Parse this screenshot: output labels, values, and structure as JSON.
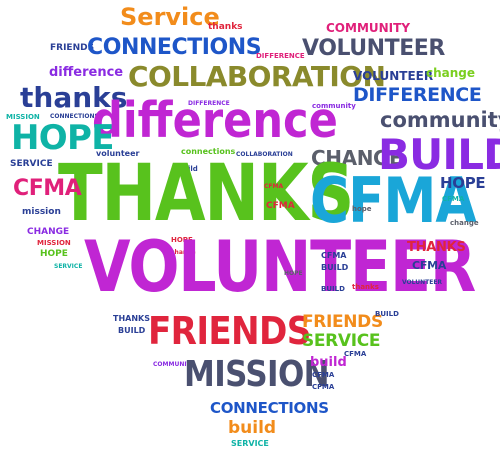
{
  "words": {
    "service_top": "Service",
    "thanks_top": "thanks",
    "community_top": "COMMUNITY",
    "friends_left_top": "FRIENDS",
    "connections_top": "CONNECTIONS",
    "difference_small_top": "DIFFERENCE",
    "volunteer_right_top": "VOLUNTEER",
    "difference_left_script": "difference",
    "collaboration": "COLLABORATION",
    "volunteer_right_mid": "VOLUNTEER",
    "change_right_top": "change",
    "thanks_left": "thanks",
    "difference_right": "DIFFERENCE",
    "difference_tiny": "DIFFERENCE",
    "community_tiny": "community",
    "mission_left_tiny": "MISSION",
    "connections_left_tiny": "CONNECTIONS",
    "difference_big": "difference",
    "community_right": "community",
    "hope_left": "HOPE",
    "volunteer_tiny": "volunteer",
    "connections_tiny": "connections",
    "collaboration_tiny": "COLLABORATION",
    "change_mid": "CHANGE",
    "build_right": "BUILD",
    "service_left": "SERVICE",
    "build_tiny1": "build",
    "thanks_big": "THANKS",
    "cfma_big": "CFMA",
    "cfma_left": "CFMA",
    "hope_right": "HOPE",
    "mission_left": "mission",
    "cfma_tiny_mid": "CFMA",
    "hope_tiny_mid": "hope",
    "cfma_right_tiny": "CFMA",
    "change_right_tiny": "change",
    "change_left": "CHANGE",
    "mission_left2": "MISSION",
    "hope_left2": "HOPE",
    "service_left2": "SERVICE",
    "hope_mid": "HOPE",
    "change_mid_tiny": "change",
    "volunteer_big": "VOLUNTEER",
    "thanks_right": "THANKS",
    "cfma_right2": "CFMA",
    "cfma_mid_small": "CFMA",
    "build_mid_small": "BUILD",
    "hope_mid_tiny": "HOPE",
    "thanks_mid_tiny": "thanks",
    "volunteer_right_tiny": "VOLUNTEER",
    "build_right_tiny": "BUILD",
    "thanks_left_bottom": "THANKS",
    "build_left_bottom": "BUILD",
    "friends_big": "FRIENDS",
    "friends_right": "FRIENDS",
    "service_right": "SERVICE",
    "cfma_right3": "CFMA",
    "community_bottom_tiny": "COMMUNITY",
    "mission_big": "MISSION",
    "build_right_script": "build",
    "cfma_right4": "CFMA",
    "connections_bottom": "CONNECTIONS",
    "build_bottom": "build",
    "service_bottom": "SERVICE"
  }
}
